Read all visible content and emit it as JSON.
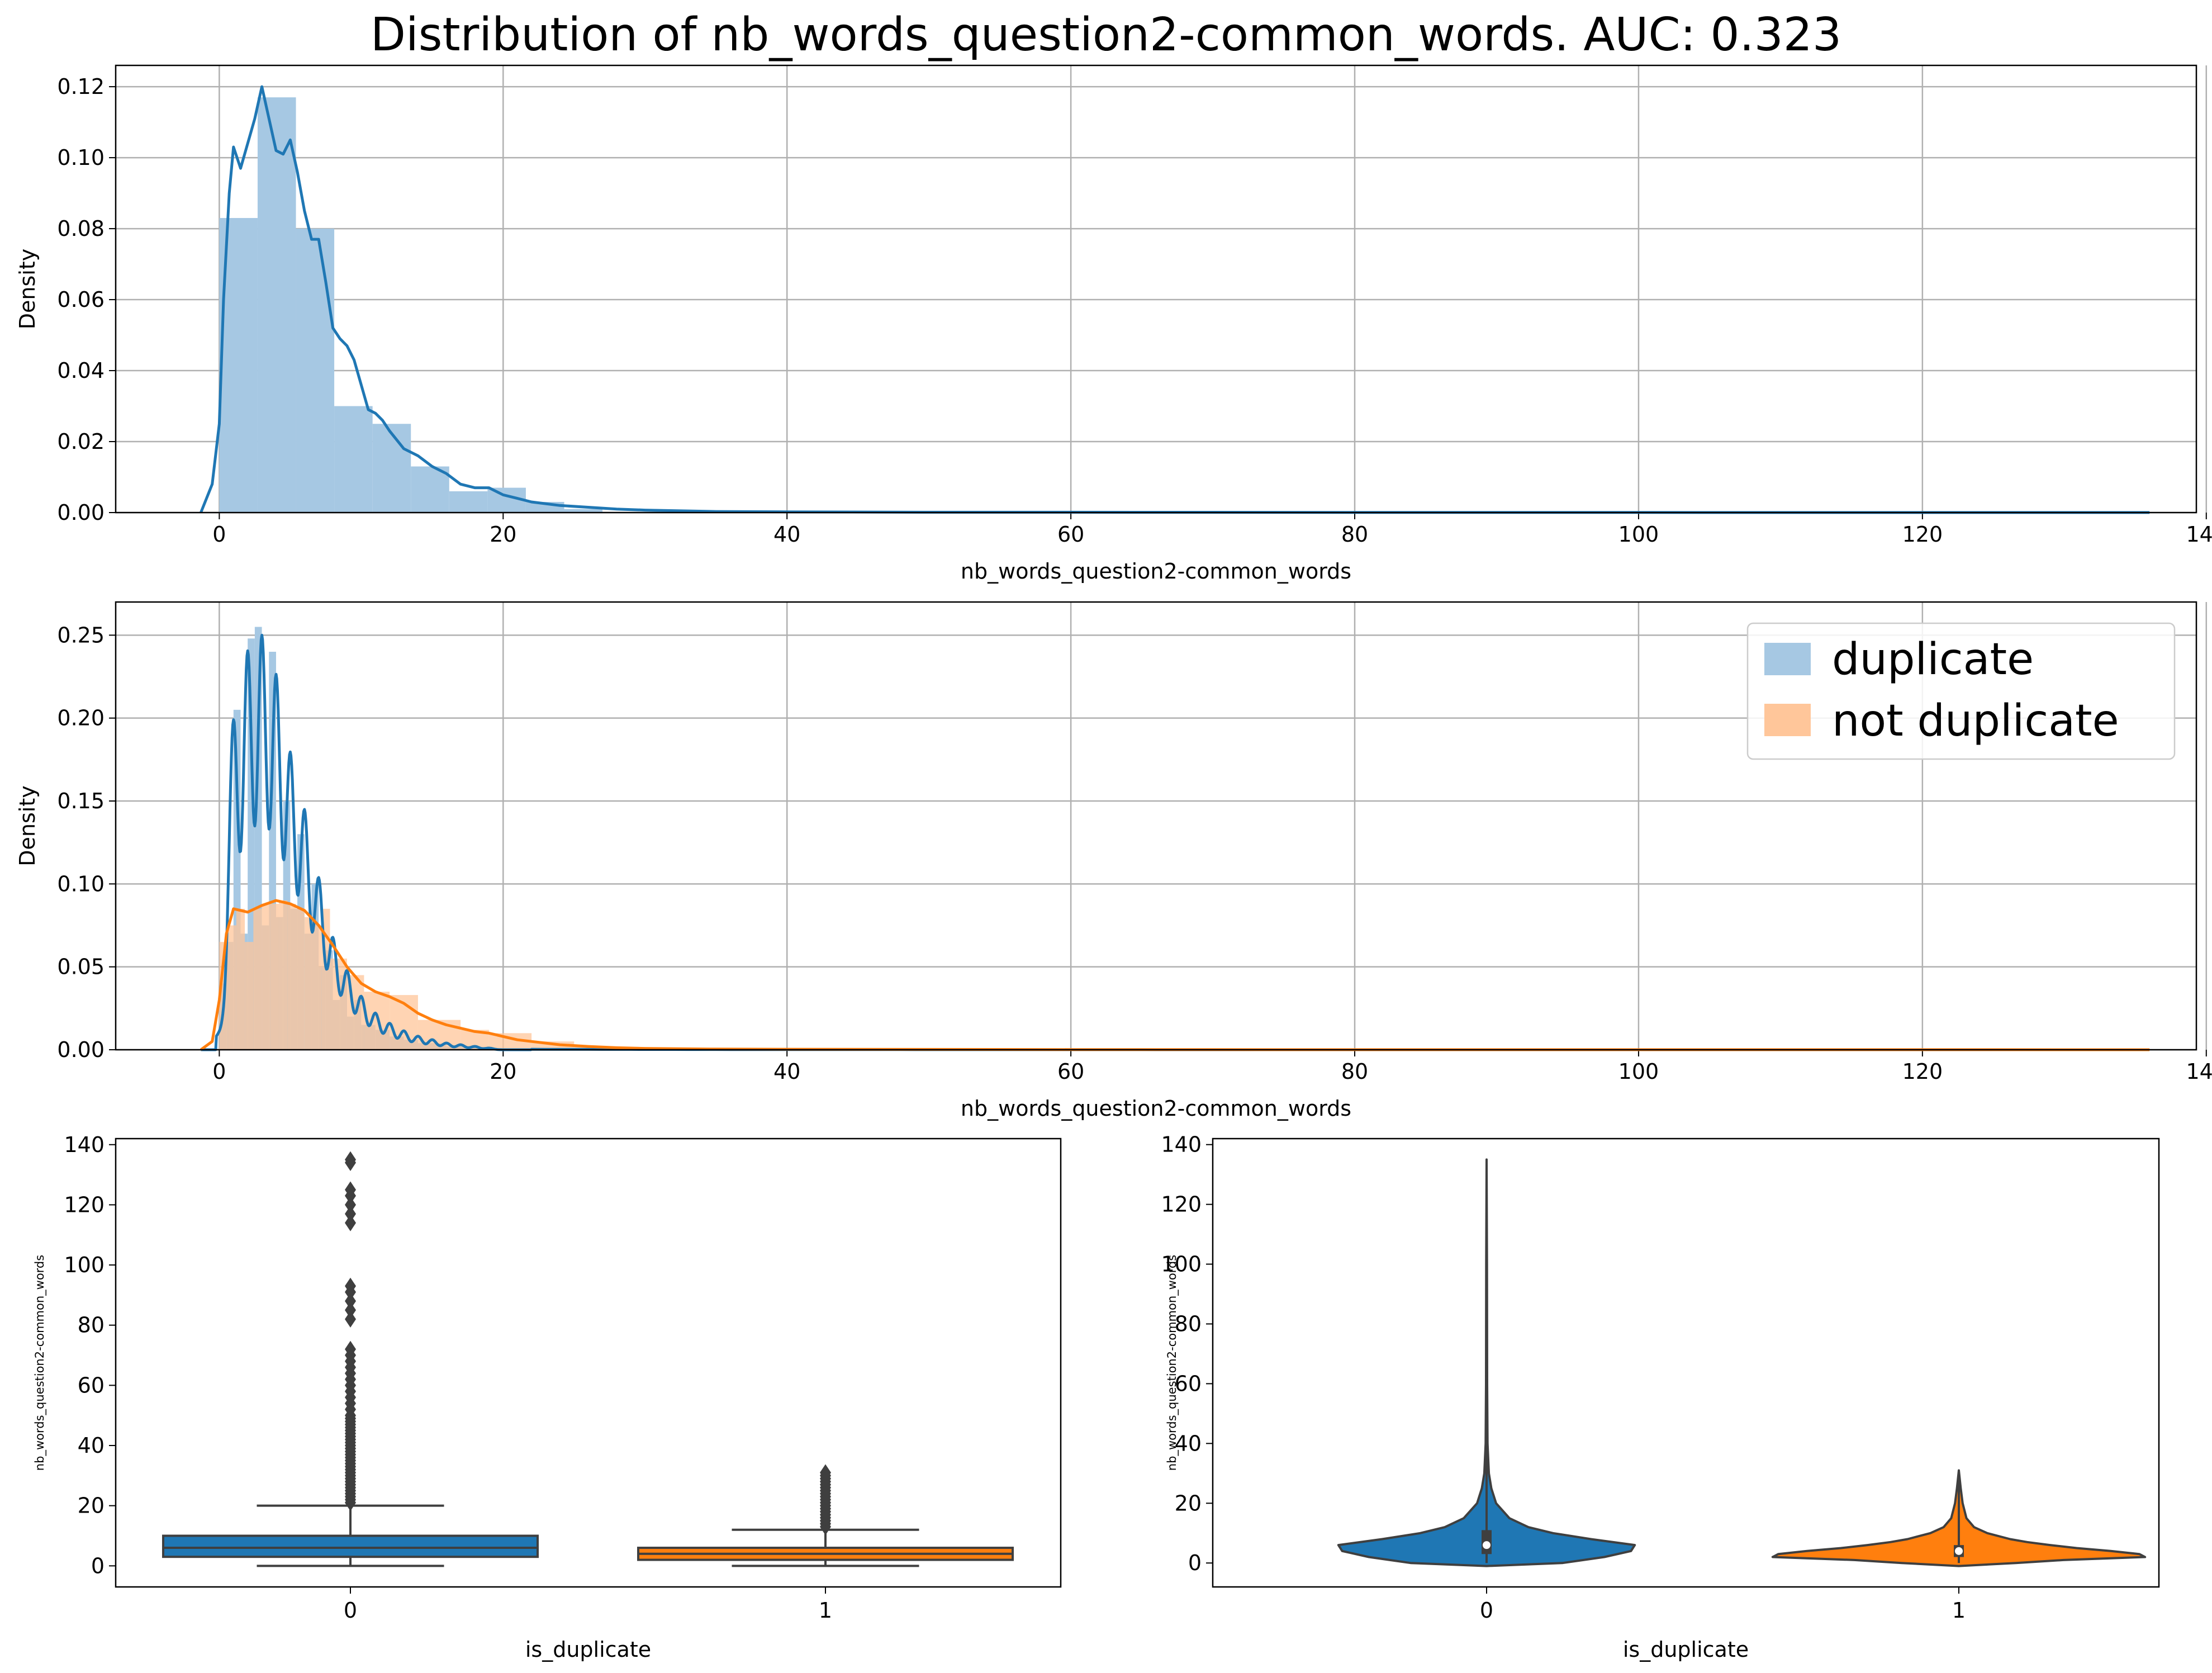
{
  "title": "Distribution of nb_words_question2-common_words. AUC: 0.323",
  "colors": {
    "duplicate": "#1f77b4",
    "not_duplicate": "#ff7f0e",
    "hist_blue": "#a6c8e3",
    "hist_orange": "#ffc69a",
    "grid": "#b0b0b0",
    "dark": "#3f3f3f"
  },
  "chart_data": [
    {
      "type": "area",
      "xlabel": "nb_words_question2-common_words",
      "ylabel": "Density",
      "xlim": [
        -7.3,
        139.3
      ],
      "ylim": [
        0,
        0.126
      ],
      "xticks": [
        0,
        20,
        40,
        60,
        80,
        100,
        120,
        140
      ],
      "yticks": [
        0.0,
        0.02,
        0.04,
        0.06,
        0.08,
        0.1,
        0.12
      ],
      "ytick_labels": [
        "0.00",
        "0.02",
        "0.04",
        "0.06",
        "0.08",
        "0.10",
        "0.12"
      ],
      "grid": true,
      "histogram": {
        "bins": [
          [
            0,
            2.7,
            0.083
          ],
          [
            2.7,
            5.4,
            0.117
          ],
          [
            5.4,
            8.1,
            0.08
          ],
          [
            8.1,
            10.8,
            0.03
          ],
          [
            10.8,
            13.5,
            0.025
          ],
          [
            13.5,
            16.2,
            0.013
          ],
          [
            16.2,
            18.9,
            0.006
          ],
          [
            18.9,
            21.6,
            0.007
          ],
          [
            21.6,
            24.3,
            0.003
          ],
          [
            24.3,
            27.0,
            0.001
          ]
        ]
      },
      "kde": {
        "x": [
          -1.3,
          -0.5,
          0,
          0.3,
          0.7,
          1.0,
          1.5,
          2.0,
          2.5,
          3.0,
          3.5,
          4.0,
          4.5,
          5.0,
          5.5,
          6.0,
          6.5,
          7.0,
          7.5,
          8.0,
          8.5,
          9.0,
          9.5,
          10.0,
          10.5,
          11.0,
          11.5,
          12.0,
          13.0,
          14.0,
          15.0,
          16.0,
          17.0,
          18.0,
          19.0,
          20.0,
          21.0,
          22.0,
          24.0,
          26.0,
          28.0,
          30.0,
          35.0,
          40.0,
          50.0,
          60.0,
          80.0,
          100.0,
          120.0,
          136.0
        ],
        "y": [
          0,
          0.008,
          0.025,
          0.06,
          0.09,
          0.103,
          0.097,
          0.104,
          0.111,
          0.12,
          0.111,
          0.102,
          0.101,
          0.105,
          0.096,
          0.085,
          0.077,
          0.077,
          0.065,
          0.052,
          0.049,
          0.047,
          0.043,
          0.036,
          0.029,
          0.028,
          0.026,
          0.023,
          0.018,
          0.016,
          0.013,
          0.011,
          0.008,
          0.007,
          0.007,
          0.005,
          0.004,
          0.003,
          0.002,
          0.0015,
          0.001,
          0.0007,
          0.0003,
          0.0002,
          0.0001,
          0.0001,
          5e-05,
          3e-05,
          2e-05,
          1e-05
        ]
      }
    },
    {
      "type": "area",
      "xlabel": "nb_words_question2-common_words",
      "ylabel": "Density",
      "xlim": [
        -7.3,
        139.3
      ],
      "ylim": [
        0,
        0.27
      ],
      "xticks": [
        0,
        20,
        40,
        60,
        80,
        100,
        120,
        140
      ],
      "yticks": [
        0.0,
        0.05,
        0.1,
        0.15,
        0.2,
        0.25
      ],
      "ytick_labels": [
        "0.00",
        "0.05",
        "0.10",
        "0.15",
        "0.20",
        "0.25"
      ],
      "grid": true,
      "legend": {
        "position": "top-right",
        "entries": [
          "duplicate",
          "not duplicate"
        ]
      },
      "series": [
        {
          "name": "duplicate",
          "histogram": [
            [
              0,
              0.5,
              0.04
            ],
            [
              0.5,
              1.0,
              0.065
            ],
            [
              1.0,
              1.5,
              0.205
            ],
            [
              1.5,
              2.0,
              0.07
            ],
            [
              2.0,
              2.5,
              0.248
            ],
            [
              2.5,
              3.0,
              0.255
            ],
            [
              3.0,
              3.5,
              0.075
            ],
            [
              3.5,
              4.0,
              0.24
            ],
            [
              4.0,
              4.5,
              0.08
            ],
            [
              4.5,
              5.0,
              0.15
            ],
            [
              5.0,
              5.5,
              0.085
            ],
            [
              5.5,
              6.0,
              0.13
            ],
            [
              6.0,
              6.5,
              0.07
            ],
            [
              6.5,
              7.0,
              0.1
            ],
            [
              7.0,
              7.5,
              0.05
            ],
            [
              7.5,
              8.0,
              0.06
            ],
            [
              8.0,
              8.5,
              0.03
            ],
            [
              8.5,
              9.0,
              0.045
            ],
            [
              9.0,
              9.5,
              0.02
            ],
            [
              9.5,
              10.0,
              0.03
            ],
            [
              10.0,
              11.0,
              0.015
            ],
            [
              11.0,
              12.0,
              0.012
            ],
            [
              12.0,
              13.0,
              0.008
            ],
            [
              13.0,
              14.0,
              0.006
            ],
            [
              14.0,
              16.0,
              0.004
            ],
            [
              16.0,
              18.0,
              0.002
            ],
            [
              18.0,
              20.0,
              0.001
            ]
          ],
          "peaks": [
            [
              1,
              0.18
            ],
            [
              2,
              0.215
            ],
            [
              3,
              0.22
            ],
            [
              4,
              0.195
            ],
            [
              5,
              0.15
            ],
            [
              6,
              0.12
            ],
            [
              7,
              0.085
            ],
            [
              8,
              0.055
            ],
            [
              9,
              0.04
            ],
            [
              10,
              0.028
            ],
            [
              11,
              0.02
            ],
            [
              12,
              0.015
            ],
            [
              13,
              0.011
            ],
            [
              14,
              0.008
            ],
            [
              15,
              0.006
            ],
            [
              16,
              0.004
            ],
            [
              17,
              0.003
            ],
            [
              18,
              0.002
            ],
            [
              19,
              0.001
            ]
          ]
        },
        {
          "name": "not duplicate",
          "histogram": [
            [
              0,
              0.6,
              0.065
            ],
            [
              0.6,
              1.2,
              0.075
            ],
            [
              1.2,
              1.8,
              0.085
            ],
            [
              1.8,
              2.4,
              0.065
            ],
            [
              2.4,
              3.0,
              0.085
            ],
            [
              3.0,
              3.6,
              0.088
            ],
            [
              3.6,
              4.2,
              0.088
            ],
            [
              4.2,
              4.8,
              0.09
            ],
            [
              4.8,
              5.4,
              0.088
            ],
            [
              5.4,
              6.0,
              0.085
            ],
            [
              6.0,
              6.6,
              0.08
            ],
            [
              6.6,
              7.2,
              0.075
            ],
            [
              7.2,
              7.8,
              0.085
            ],
            [
              7.8,
              9.0,
              0.055
            ],
            [
              9.0,
              10.2,
              0.045
            ],
            [
              10.2,
              12.0,
              0.035
            ],
            [
              12.0,
              14.0,
              0.033
            ],
            [
              14.0,
              17.0,
              0.018
            ],
            [
              17.0,
              19.0,
              0.012
            ],
            [
              19.0,
              22.0,
              0.01
            ],
            [
              22.0,
              25.0,
              0.005
            ],
            [
              25.0,
              28.0,
              0.002
            ]
          ],
          "kde": {
            "x": [
              -1.3,
              -0.5,
              0,
              0.5,
              1,
              2,
              3,
              4,
              5,
              6,
              7,
              8,
              9,
              10,
              11,
              12,
              13,
              14,
              15,
              16,
              17,
              18,
              19,
              20,
              21,
              22,
              23,
              24,
              26,
              28,
              30,
              35,
              40,
              50,
              60,
              80,
              100,
              120,
              136
            ],
            "y": [
              0,
              0.005,
              0.03,
              0.07,
              0.085,
              0.083,
              0.087,
              0.09,
              0.088,
              0.084,
              0.075,
              0.063,
              0.05,
              0.04,
              0.035,
              0.032,
              0.028,
              0.022,
              0.018,
              0.015,
              0.013,
              0.011,
              0.01,
              0.008,
              0.006,
              0.005,
              0.004,
              0.003,
              0.002,
              0.0012,
              0.0008,
              0.0004,
              0.0003,
              0.0002,
              0.0001,
              5e-05,
              3e-05,
              2e-05,
              1e-05
            ]
          }
        }
      ]
    },
    {
      "type": "box",
      "xlabel": "is_duplicate",
      "ylabel": "nb_words_question2-common_words",
      "categories": [
        "0",
        "1"
      ],
      "ylim": [
        -7,
        142
      ],
      "yticks": [
        0,
        20,
        40,
        60,
        80,
        100,
        120,
        140
      ],
      "boxes": [
        {
          "category": "0",
          "q1": 3,
          "median": 6,
          "q3": 10,
          "whisker_low": 0,
          "whisker_high": 20,
          "outliers": [
            21,
            22,
            23,
            24,
            25,
            26,
            27,
            28,
            29,
            30,
            31,
            32,
            33,
            34,
            35,
            36,
            37,
            38,
            39,
            40,
            41,
            42,
            43,
            44,
            45,
            46,
            47,
            48,
            49,
            50,
            52,
            54,
            56,
            58,
            60,
            62,
            64,
            66,
            68,
            70,
            72,
            82,
            85,
            88,
            91,
            93,
            114,
            117,
            120,
            123,
            125,
            134,
            135
          ]
        },
        {
          "category": "1",
          "q1": 2,
          "median": 4,
          "q3": 6,
          "whisker_low": 0,
          "whisker_high": 12,
          "outliers": [
            13,
            14,
            15,
            16,
            17,
            18,
            19,
            20,
            21,
            22,
            23,
            24,
            25,
            26,
            27,
            28,
            29,
            30,
            31
          ]
        }
      ]
    },
    {
      "type": "violin",
      "xlabel": "is_duplicate",
      "ylabel": "nb_words_question2-common_words",
      "categories": [
        "0",
        "1"
      ],
      "ylim": [
        -8,
        142
      ],
      "yticks": [
        0,
        20,
        40,
        60,
        80,
        100,
        120,
        140
      ],
      "violins": [
        {
          "category": "0",
          "q1": 3,
          "median": 6,
          "q3": 11,
          "max": 135,
          "profile": [
            [
              -1,
              0.0
            ],
            [
              0,
              0.4
            ],
            [
              2,
              0.62
            ],
            [
              4,
              0.76
            ],
            [
              6,
              0.78
            ],
            [
              8,
              0.55
            ],
            [
              10,
              0.35
            ],
            [
              12,
              0.22
            ],
            [
              15,
              0.12
            ],
            [
              20,
              0.05
            ],
            [
              25,
              0.025
            ],
            [
              30,
              0.012
            ],
            [
              40,
              0.005
            ],
            [
              60,
              0.003
            ],
            [
              100,
              0.002
            ],
            [
              135,
              0.0
            ]
          ]
        },
        {
          "category": "1",
          "q1": 2,
          "median": 4,
          "q3": 6,
          "max": 31,
          "profile": [
            [
              -1,
              0.0
            ],
            [
              0,
              0.3
            ],
            [
              1,
              0.55
            ],
            [
              2,
              0.98
            ],
            [
              3,
              0.95
            ],
            [
              4,
              0.8
            ],
            [
              5,
              0.62
            ],
            [
              6,
              0.48
            ],
            [
              7,
              0.36
            ],
            [
              8,
              0.27
            ],
            [
              10,
              0.15
            ],
            [
              12,
              0.08
            ],
            [
              15,
              0.04
            ],
            [
              20,
              0.02
            ],
            [
              25,
              0.01
            ],
            [
              31,
              0.0
            ]
          ]
        }
      ]
    }
  ]
}
